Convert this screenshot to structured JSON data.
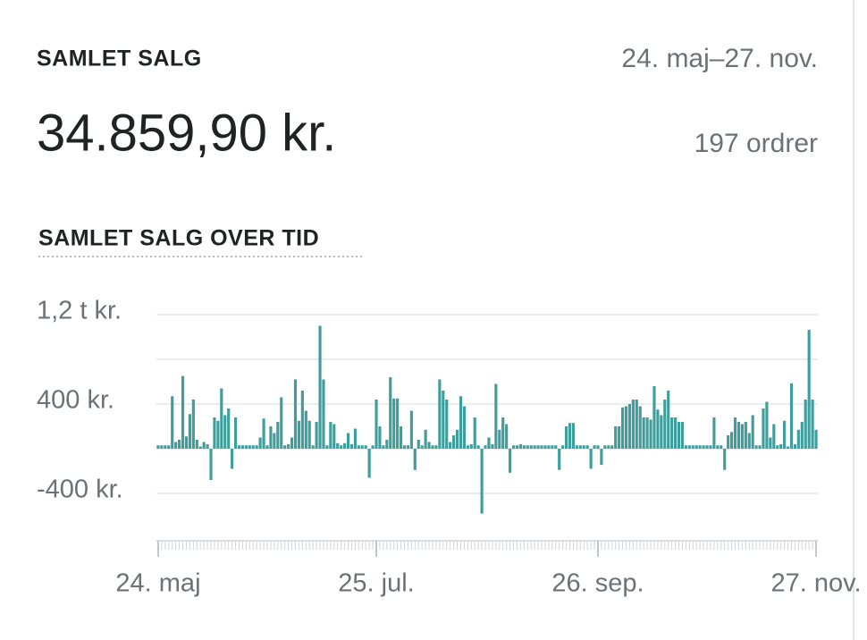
{
  "header": {
    "title": "SAMLET SALG",
    "date_range": "24. maj–27. nov.",
    "total": "34.859,90 kr.",
    "orders": "197 ordrer"
  },
  "chart_data": {
    "type": "bar",
    "title": "SAMLET SALG OVER TID",
    "color": "#3f9e9b",
    "ylim": [
      -800,
      1200
    ],
    "yticks": [
      {
        "value": 1200,
        "label": "1,2 t kr."
      },
      {
        "value": 800,
        "label": null
      },
      {
        "value": 400,
        "label": "400 kr."
      },
      {
        "value": 0,
        "label": null
      },
      {
        "value": -400,
        "label": "-400 kr."
      }
    ],
    "grid": true,
    "xlim": [
      -0.5,
      187.5
    ],
    "xticks": [
      {
        "value": 0,
        "label": "24. maj"
      },
      {
        "value": 62,
        "label": "25. jul."
      },
      {
        "value": 125,
        "label": "26. sep."
      },
      {
        "value": 187,
        "label": "27. nov."
      }
    ],
    "values": [
      30,
      30,
      30,
      30,
      470,
      60,
      80,
      650,
      110,
      310,
      440,
      80,
      20,
      60,
      40,
      -280,
      280,
      250,
      540,
      300,
      360,
      -180,
      280,
      30,
      30,
      30,
      30,
      30,
      30,
      100,
      270,
      30,
      200,
      140,
      240,
      460,
      30,
      40,
      100,
      620,
      250,
      520,
      340,
      250,
      30,
      240,
      1100,
      620,
      30,
      240,
      220,
      50,
      30,
      50,
      140,
      40,
      180,
      30,
      30,
      30,
      -260,
      30,
      440,
      200,
      30,
      80,
      640,
      450,
      450,
      200,
      30,
      30,
      340,
      -190,
      80,
      30,
      170,
      60,
      30,
      30,
      620,
      520,
      440,
      60,
      120,
      170,
      470,
      380,
      30,
      40,
      280,
      30,
      -580,
      30,
      100,
      40,
      580,
      170,
      280,
      220,
      -215,
      30,
      30,
      40,
      30,
      30,
      30,
      30,
      30,
      30,
      30,
      30,
      30,
      30,
      -190,
      30,
      200,
      230,
      230,
      30,
      30,
      30,
      30,
      -180,
      30,
      30,
      -145,
      30,
      30,
      30,
      200,
      200,
      370,
      380,
      400,
      440,
      440,
      380,
      280,
      280,
      260,
      560,
      350,
      300,
      440,
      520,
      280,
      280,
      240,
      240,
      30,
      30,
      30,
      30,
      30,
      30,
      30,
      30,
      280,
      30,
      30,
      -190,
      120,
      150,
      280,
      240,
      220,
      240,
      140,
      300,
      30,
      30,
      360,
      420,
      100,
      220,
      30,
      40,
      250,
      20,
      585,
      40,
      170,
      240,
      440,
      1065,
      440,
      170
    ]
  }
}
